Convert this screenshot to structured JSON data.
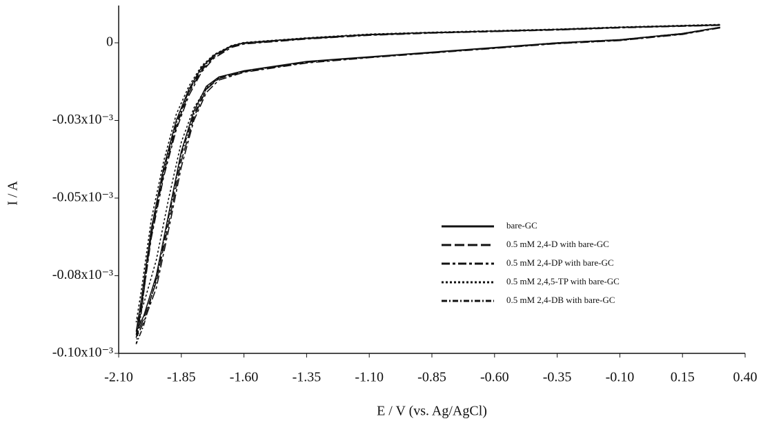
{
  "chart_data": {
    "type": "line",
    "x_label": "E / V (vs. Ag/AgCl)",
    "y_label": "I / A",
    "xlim": [
      -2.1,
      0.4
    ],
    "ylim": [
      -0.1,
      0.012
    ],
    "xticks": [
      {
        "value": -2.1,
        "label": "-2.10"
      },
      -1.85,
      {
        "value": -1.6,
        "label": "-1.60"
      },
      -1.35,
      {
        "value": -1.1,
        "label": "-1.10"
      },
      -0.85,
      {
        "value": -0.6,
        "label": "-0.60"
      },
      -0.35,
      {
        "value": -0.1,
        "label": "-0.10"
      },
      0.15,
      {
        "value": 0.4,
        "label": "0.40"
      }
    ],
    "yticks": [
      0,
      {
        "value": -0.025,
        "label": "-0.03x10⁻³"
      },
      {
        "value": -0.05,
        "label": "-0.05x10⁻³"
      },
      {
        "value": -0.075,
        "label": "-0.08x10⁻³"
      },
      {
        "value": -0.1,
        "label": "-0.10x10⁻³"
      }
    ],
    "legend": "lower right",
    "x": [
      0.3,
      0.15,
      -0.1,
      -0.35,
      -0.6,
      -0.85,
      -1.1,
      -1.35,
      -1.6,
      -1.7,
      -1.75,
      -1.8,
      -1.85,
      -1.9,
      -1.95,
      -2.0,
      -2.03,
      -2.01,
      -1.97,
      -1.92,
      -1.87,
      -1.82,
      -1.77,
      -1.72,
      -1.65,
      -1.6,
      -1.35,
      -1.1,
      -0.85,
      -0.6,
      -0.35,
      -0.1,
      0.15,
      0.3
    ],
    "series": [
      {
        "name": "bare-GC",
        "color": "#111111",
        "dash": "solid",
        "values": [
          0.005,
          0.003,
          0.001,
          0,
          -0.0015,
          -0.003,
          -0.0045,
          -0.006,
          -0.009,
          -0.011,
          -0.014,
          -0.022,
          -0.035,
          -0.055,
          -0.075,
          -0.088,
          -0.093,
          -0.083,
          -0.06,
          -0.04,
          -0.025,
          -0.015,
          -0.008,
          -0.004,
          -0.001,
          0,
          0.0015,
          0.0027,
          0.0033,
          0.0038,
          0.0043,
          0.005,
          0.0055,
          0.0058
        ]
      },
      {
        "name": "0.5 mM 2,4-D with bare-GC",
        "color": "#111111",
        "dash": "dashed",
        "values": [
          0.005,
          0.0028,
          0.0008,
          -0.0002,
          -0.0017,
          -0.0032,
          -0.0047,
          -0.0063,
          -0.0093,
          -0.0115,
          -0.015,
          -0.024,
          -0.038,
          -0.058,
          -0.077,
          -0.089,
          -0.094,
          -0.085,
          -0.062,
          -0.042,
          -0.027,
          -0.016,
          -0.009,
          -0.0045,
          -0.0012,
          -0.0002,
          0.0013,
          0.0025,
          0.0032,
          0.0037,
          0.0042,
          0.0049,
          0.0054,
          0.0057
        ]
      },
      {
        "name": "0.5 mM 2,4-DP with bare-GC",
        "color": "#111111",
        "dash": "long-short",
        "values": [
          0.0048,
          0.0027,
          0.0007,
          -0.0003,
          -0.0018,
          -0.0033,
          -0.0048,
          -0.0065,
          -0.0095,
          -0.012,
          -0.016,
          -0.025,
          -0.04,
          -0.06,
          -0.079,
          -0.09,
          -0.095,
          -0.086,
          -0.063,
          -0.043,
          -0.028,
          -0.017,
          -0.0095,
          -0.005,
          -0.0015,
          -0.0004,
          0.0012,
          0.0024,
          0.0031,
          0.0036,
          0.0041,
          0.0048,
          0.0053,
          0.0056
        ]
      },
      {
        "name": "0.5 mM 2,4,5-TP with bare-GC",
        "color": "#111111",
        "dash": "dotted",
        "values": [
          0.0049,
          0.0029,
          0.0009,
          -0.0001,
          -0.0016,
          -0.0031,
          -0.0046,
          -0.0062,
          -0.0092,
          -0.0113,
          -0.0145,
          -0.021,
          -0.032,
          -0.05,
          -0.07,
          -0.084,
          -0.09,
          -0.08,
          -0.057,
          -0.038,
          -0.023,
          -0.014,
          -0.0075,
          -0.0038,
          -0.0009,
          0.0001,
          0.0016,
          0.0028,
          0.0034,
          0.0039,
          0.0044,
          0.0051,
          0.0056,
          0.0059
        ]
      },
      {
        "name": "0.5 mM 2,4-DB with bare-GC",
        "color": "#111111",
        "dash": "dash-dot",
        "values": [
          0.005,
          0.003,
          0.001,
          0,
          -0.0016,
          -0.0031,
          -0.0046,
          -0.0061,
          -0.0091,
          -0.0112,
          -0.0148,
          -0.023,
          -0.036,
          -0.056,
          -0.076,
          -0.091,
          -0.097,
          -0.087,
          -0.061,
          -0.041,
          -0.026,
          -0.0155,
          -0.0085,
          -0.0042,
          -0.0011,
          -0.0001,
          0.0014,
          0.0026,
          0.0032,
          0.0037,
          0.0042,
          0.0049,
          0.0054,
          0.0057
        ]
      }
    ]
  }
}
